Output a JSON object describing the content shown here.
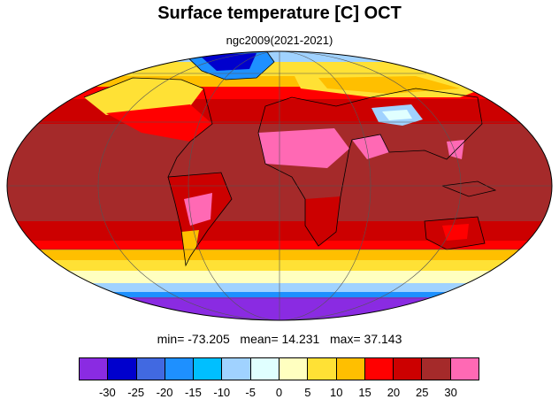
{
  "title": "Surface temperature [C] OCT",
  "subtitle": "ngc2009(2021-2021)",
  "stats": {
    "min_label": "min=",
    "min": "-73.205",
    "mean_label": "mean=",
    "mean": "14.231",
    "max_label": "max=",
    "max": "37.143"
  },
  "colorbar": {
    "colors": [
      "#8a2be2",
      "#0000cd",
      "#4169e1",
      "#1e90ff",
      "#00bfff",
      "#a0d2ff",
      "#e0ffff",
      "#ffffc0",
      "#ffe135",
      "#ffbf00",
      "#ff0000",
      "#cc0000",
      "#a52a2a",
      "#ff69b4"
    ],
    "tick_labels": [
      "-30",
      "-25",
      "-20",
      "-15",
      "-10",
      "-5",
      "0",
      "5",
      "10",
      "15",
      "20",
      "25",
      "30"
    ]
  },
  "map": {
    "projection": "mollweide",
    "field": "surface temperature",
    "units": "C",
    "colors": {
      "polar_south": "#8a2be2",
      "ice": "#1e90ff",
      "cold": "#a0d2ff",
      "cool": "#ffe135",
      "mild": "#ffbf00",
      "warm": "#ff0000",
      "hot": "#cc0000",
      "hottest": "#a52a2a",
      "extreme": "#ff69b4",
      "coast": "#000000",
      "grid": "#555555"
    }
  }
}
